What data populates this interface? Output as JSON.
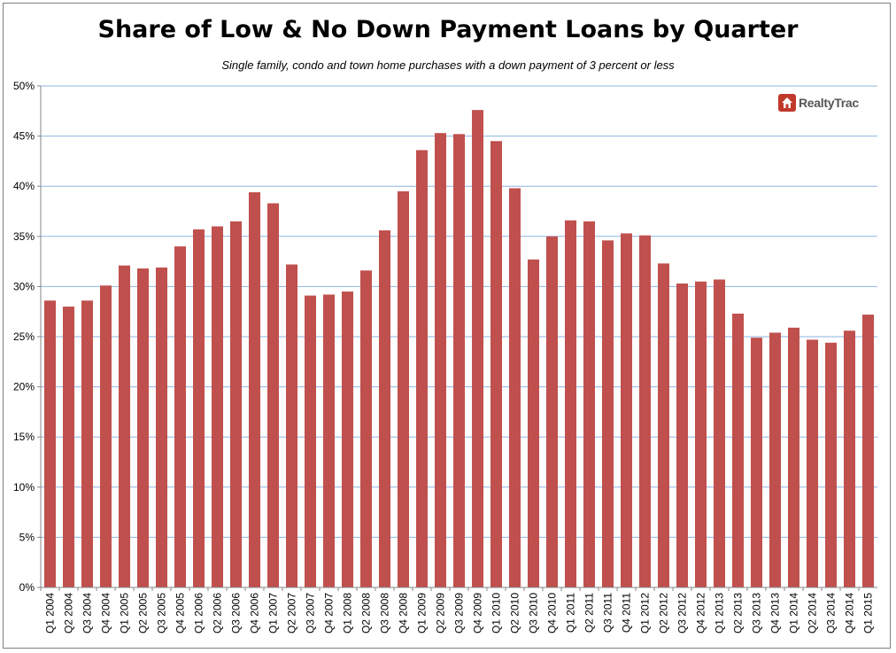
{
  "chart_data": {
    "type": "bar",
    "title": "Share of Low & No Down Payment Loans by Quarter",
    "subtitle": "Single family, condo and town home purchases with a down payment of 3 percent or less",
    "xlabel": "",
    "ylabel": "",
    "ylim": [
      0,
      50
    ],
    "yticks": [
      "0%",
      "5%",
      "10%",
      "15%",
      "20%",
      "25%",
      "30%",
      "35%",
      "40%",
      "45%",
      "50%"
    ],
    "grid": true,
    "bar_color": "#c0504d",
    "grid_color": "#8db4e2",
    "categories": [
      "Q1 2004",
      "Q2 2004",
      "Q3 2004",
      "Q4 2004",
      "Q1 2005",
      "Q2 2005",
      "Q3 2005",
      "Q4 2005",
      "Q1 2006",
      "Q2 2006",
      "Q3 2006",
      "Q4 2006",
      "Q1 2007",
      "Q2 2007",
      "Q3 2007",
      "Q4 2007",
      "Q1 2008",
      "Q2 2008",
      "Q3 2008",
      "Q4 2008",
      "Q1 2009",
      "Q2 2009",
      "Q3 2009",
      "Q4 2009",
      "Q1 2010",
      "Q2 2010",
      "Q3 2010",
      "Q4 2010",
      "Q1 2011",
      "Q2 2011",
      "Q3 2011",
      "Q4 2011",
      "Q1 2012",
      "Q2 2012",
      "Q3 2012",
      "Q4 2012",
      "Q1 2013",
      "Q2 2013",
      "Q3 2013",
      "Q4 2013",
      "Q1 2014",
      "Q2 2014",
      "Q3 2014",
      "Q4 2014",
      "Q1 2015"
    ],
    "values": [
      28.6,
      28.0,
      28.6,
      30.1,
      32.1,
      31.8,
      31.9,
      34.0,
      35.7,
      36.0,
      36.5,
      39.4,
      38.3,
      32.2,
      29.1,
      29.2,
      29.5,
      31.6,
      35.6,
      39.5,
      43.6,
      45.3,
      45.2,
      47.6,
      44.5,
      39.8,
      32.7,
      35.0,
      36.6,
      36.5,
      34.6,
      35.3,
      35.1,
      32.3,
      30.3,
      30.5,
      30.7,
      27.3,
      24.9,
      25.4,
      25.9,
      24.7,
      24.4,
      25.6,
      27.2
    ]
  },
  "logo": {
    "text": "RealtyTrac",
    "color": "#c0392b"
  }
}
